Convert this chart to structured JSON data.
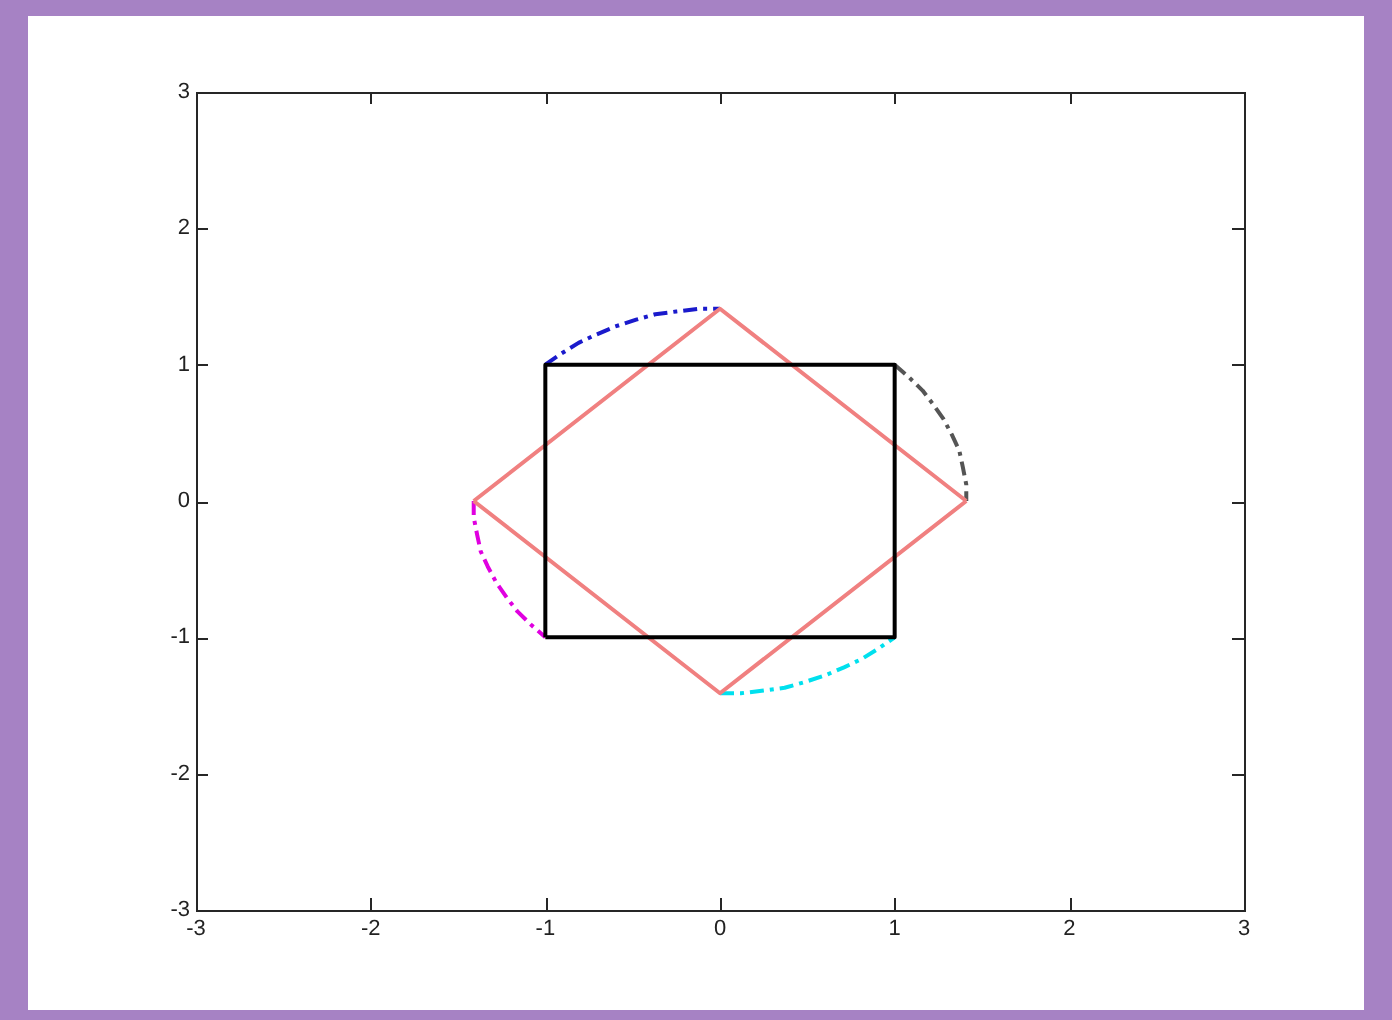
{
  "chart_data": {
    "type": "line",
    "xlim": [
      -3,
      3
    ],
    "ylim": [
      -3,
      3
    ],
    "xticks": [
      -3,
      -2,
      -1,
      0,
      1,
      2,
      3
    ],
    "yticks": [
      -3,
      -2,
      -1,
      0,
      1,
      2,
      3
    ],
    "grid": false,
    "legend": false,
    "marker": "none",
    "series": [
      {
        "color": "#000000",
        "line_style": "solid",
        "x": [
          -1,
          -1,
          1,
          1
        ],
        "values": [
          -1,
          1,
          1,
          -1
        ]
      },
      {
        "color": "#000000",
        "line_style": "solid",
        "x": [
          -1,
          1
        ],
        "values": [
          -1,
          -1
        ]
      },
      {
        "color": "#f08080",
        "line_style": "solid",
        "x": [
          -1.41,
          0,
          1.41
        ],
        "values": [
          0,
          1.41,
          0
        ]
      },
      {
        "color": "#f08080",
        "line_style": "solid",
        "x": [
          -1.41,
          0,
          1.41
        ],
        "values": [
          0,
          -1.41,
          0
        ]
      },
      {
        "color": "#1a1acc",
        "line_style": "dashed",
        "x": [
          -1,
          -0.91,
          -0.81,
          -0.71,
          -0.6,
          -0.48,
          -0.37,
          -0.25,
          -0.12,
          0
        ],
        "values": [
          1,
          1.08,
          1.16,
          1.22,
          1.28,
          1.33,
          1.37,
          1.39,
          1.41,
          1.41
        ]
      },
      {
        "color": "#555555",
        "line_style": "dashed",
        "x": [
          1,
          1.08,
          1.16,
          1.22,
          1.28,
          1.33,
          1.37,
          1.39,
          1.41,
          1.41
        ],
        "values": [
          1,
          0.91,
          0.81,
          0.71,
          0.6,
          0.48,
          0.37,
          0.25,
          0.12,
          0
        ]
      },
      {
        "color": "#00e0ee",
        "line_style": "dashed",
        "x": [
          0,
          0.12,
          0.25,
          0.37,
          0.48,
          0.6,
          0.71,
          0.81,
          0.91,
          1
        ],
        "values": [
          -1.41,
          -1.41,
          -1.39,
          -1.37,
          -1.33,
          -1.28,
          -1.22,
          -1.16,
          -1.08,
          -1
        ]
      },
      {
        "color": "#e000e0",
        "line_style": "dashed",
        "x": [
          -1.41,
          -1.41,
          -1.39,
          -1.37,
          -1.33,
          -1.28,
          -1.22,
          -1.16,
          -1.08,
          -1
        ],
        "values": [
          0,
          -0.12,
          -0.25,
          -0.37,
          -0.48,
          -0.6,
          -0.71,
          -0.81,
          -0.91,
          -1
        ]
      }
    ]
  }
}
